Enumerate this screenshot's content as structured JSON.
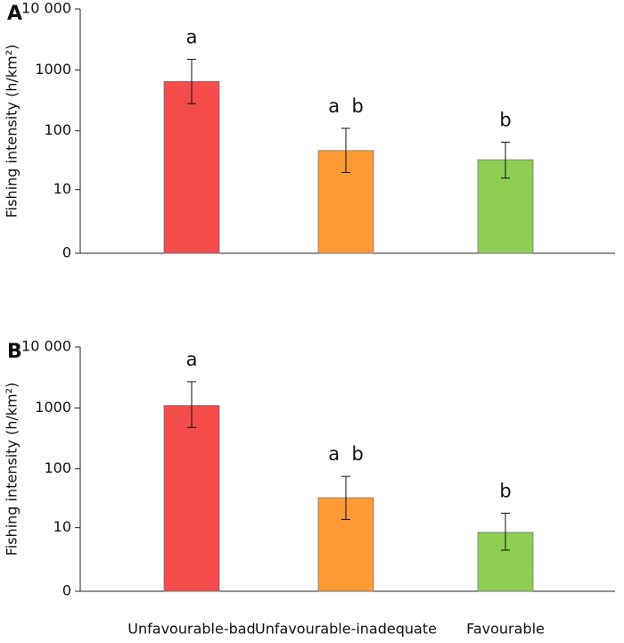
{
  "chart_data": [
    {
      "type": "bar",
      "panel_label": "A",
      "y_label": "Fishing intensity (h/km²)",
      "categories": [
        null,
        null,
        null
      ],
      "values": [
        650,
        47,
        33
      ],
      "error_bounds": [
        [
          280,
          1500
        ],
        [
          20,
          110
        ],
        [
          16,
          65
        ]
      ],
      "annotations": [
        "a",
        "a  b",
        "b"
      ],
      "colors": [
        "#f44b4b",
        "#fd9a35",
        "#8fce52"
      ],
      "log_scale": true,
      "ylim": [
        0,
        10000
      ],
      "yticks": [
        0,
        10,
        100,
        1000,
        {
          "value": 10000,
          "label": "10 000"
        }
      ]
    },
    {
      "type": "bar",
      "panel_label": "B",
      "y_label": "Fishing intensity (h/km²)",
      "categories": [
        "Unfavourable-bad",
        "Unfavourable-inadequate",
        "Favourable"
      ],
      "values": [
        1100,
        33,
        8.2
      ],
      "error_bounds": [
        [
          480,
          2700
        ],
        [
          14,
          75
        ],
        [
          3.7,
          18
        ]
      ],
      "annotations": [
        "a",
        "a  b",
        "b"
      ],
      "colors": [
        "#f44b4b",
        "#fd9a35",
        "#8fce52"
      ],
      "log_scale": true,
      "ylim": [
        0,
        10000
      ],
      "yticks": [
        0,
        10,
        100,
        1000,
        {
          "value": 10000,
          "label": "10 000"
        }
      ]
    }
  ]
}
